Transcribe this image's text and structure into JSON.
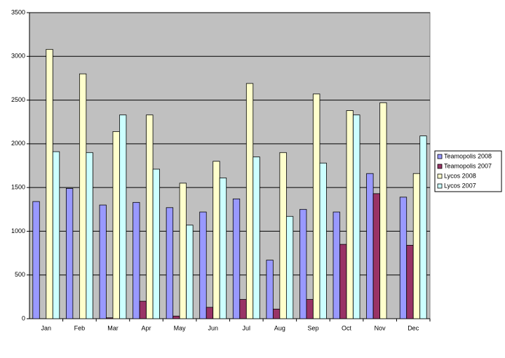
{
  "chart_data": {
    "type": "bar",
    "categories": [
      "Jan",
      "Feb",
      "Mar",
      "Apr",
      "May",
      "Jun",
      "Jul",
      "Aug",
      "Sep",
      "Oct",
      "Nov",
      "Dec"
    ],
    "series": [
      {
        "name": "Teamopolis 2008",
        "color": "#9999ff",
        "values": [
          1340,
          1490,
          1300,
          1330,
          1270,
          1220,
          1370,
          670,
          1250,
          1220,
          1660,
          1390
        ]
      },
      {
        "name": "Teamopolis 2007",
        "color": "#993366",
        "values": [
          0,
          0,
          10,
          200,
          30,
          130,
          220,
          110,
          220,
          850,
          1430,
          840
        ]
      },
      {
        "name": "Lycos 2008",
        "color": "#ffffcc",
        "values": [
          3080,
          2800,
          2140,
          2330,
          1550,
          1800,
          2690,
          1900,
          2570,
          2380,
          2470,
          1660
        ]
      },
      {
        "name": "Lycos 2007",
        "color": "#ccffff",
        "values": [
          1910,
          1900,
          2330,
          1710,
          1070,
          1610,
          1850,
          1170,
          1780,
          2330,
          null,
          2090
        ]
      }
    ],
    "ylim": [
      0,
      3500
    ],
    "yticks": [
      0,
      500,
      1000,
      1500,
      2000,
      2500,
      3000,
      3500
    ],
    "grid": true,
    "legend": "right"
  }
}
